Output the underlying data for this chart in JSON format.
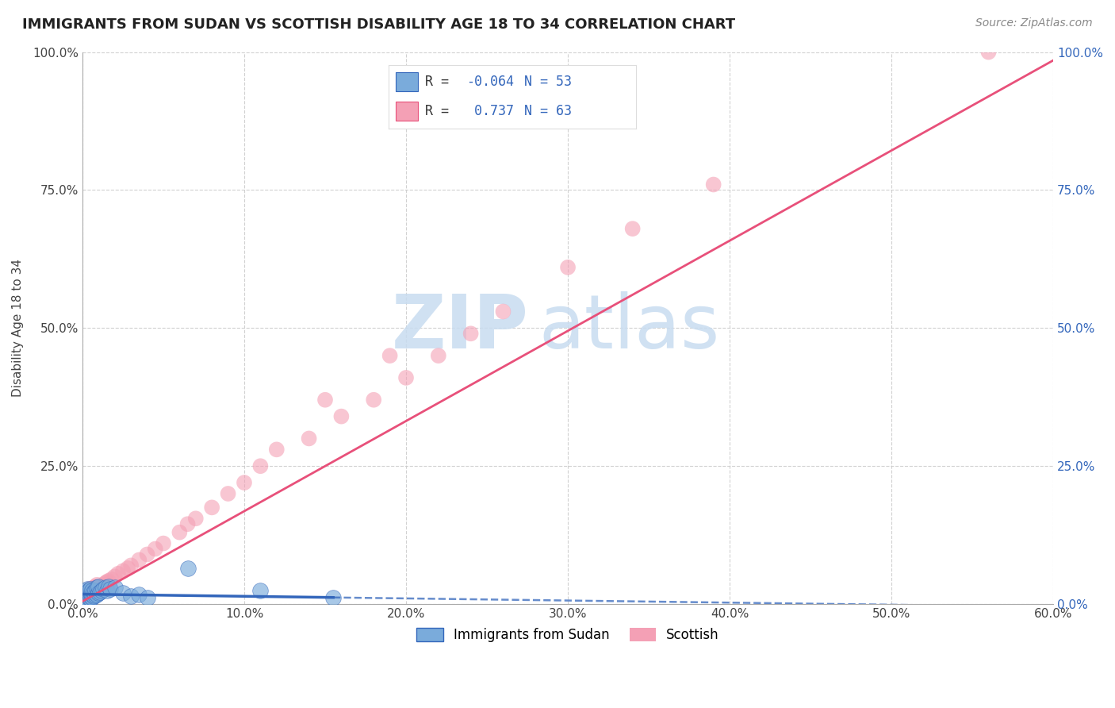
{
  "title": "IMMIGRANTS FROM SUDAN VS SCOTTISH DISABILITY AGE 18 TO 34 CORRELATION CHART",
  "source_text": "Source: ZipAtlas.com",
  "ylabel": "Disability Age 18 to 34",
  "xlim": [
    0.0,
    0.6
  ],
  "ylim": [
    0.0,
    1.0
  ],
  "xtick_labels": [
    "0.0%",
    "10.0%",
    "20.0%",
    "30.0%",
    "40.0%",
    "50.0%",
    "60.0%"
  ],
  "xtick_vals": [
    0.0,
    0.1,
    0.2,
    0.3,
    0.4,
    0.5,
    0.6
  ],
  "ytick_labels": [
    "0.0%",
    "25.0%",
    "50.0%",
    "75.0%",
    "100.0%"
  ],
  "ytick_vals": [
    0.0,
    0.25,
    0.5,
    0.75,
    1.0
  ],
  "legend1_label": "Immigrants from Sudan",
  "legend2_label": "Scottish",
  "R1": -0.064,
  "N1": 53,
  "R2": 0.737,
  "N2": 63,
  "color_blue": "#7AABDB",
  "color_pink": "#F4A0B5",
  "color_line_blue": "#3366BB",
  "color_line_pink": "#E8507A",
  "watermark_color": "#C8DCF0",
  "background_color": "#FFFFFF",
  "grid_color": "#CCCCCC",
  "blue_scatter_x": [
    0.001,
    0.001,
    0.001,
    0.001,
    0.001,
    0.002,
    0.002,
    0.002,
    0.002,
    0.002,
    0.002,
    0.002,
    0.003,
    0.003,
    0.003,
    0.003,
    0.003,
    0.003,
    0.004,
    0.004,
    0.004,
    0.004,
    0.004,
    0.005,
    0.005,
    0.005,
    0.005,
    0.006,
    0.006,
    0.006,
    0.007,
    0.007,
    0.008,
    0.008,
    0.009,
    0.009,
    0.01,
    0.01,
    0.011,
    0.012,
    0.013,
    0.014,
    0.015,
    0.016,
    0.017,
    0.02,
    0.025,
    0.03,
    0.035,
    0.04,
    0.065,
    0.11,
    0.155
  ],
  "blue_scatter_y": [
    0.005,
    0.007,
    0.01,
    0.012,
    0.015,
    0.005,
    0.008,
    0.01,
    0.013,
    0.016,
    0.02,
    0.025,
    0.006,
    0.01,
    0.015,
    0.018,
    0.022,
    0.028,
    0.008,
    0.012,
    0.016,
    0.02,
    0.025,
    0.01,
    0.015,
    0.02,
    0.028,
    0.012,
    0.018,
    0.025,
    0.015,
    0.022,
    0.016,
    0.025,
    0.018,
    0.03,
    0.02,
    0.032,
    0.022,
    0.025,
    0.028,
    0.03,
    0.025,
    0.032,
    0.028,
    0.03,
    0.02,
    0.015,
    0.018,
    0.012,
    0.065,
    0.025,
    0.012
  ],
  "pink_scatter_x": [
    0.001,
    0.001,
    0.001,
    0.002,
    0.002,
    0.002,
    0.002,
    0.003,
    0.003,
    0.003,
    0.003,
    0.004,
    0.004,
    0.004,
    0.005,
    0.005,
    0.005,
    0.006,
    0.006,
    0.007,
    0.007,
    0.008,
    0.008,
    0.009,
    0.009,
    0.01,
    0.011,
    0.012,
    0.013,
    0.014,
    0.015,
    0.016,
    0.018,
    0.02,
    0.022,
    0.025,
    0.028,
    0.03,
    0.035,
    0.04,
    0.045,
    0.05,
    0.06,
    0.065,
    0.07,
    0.08,
    0.09,
    0.1,
    0.11,
    0.12,
    0.14,
    0.16,
    0.18,
    0.2,
    0.22,
    0.24,
    0.26,
    0.3,
    0.34,
    0.39,
    0.15,
    0.19,
    0.56
  ],
  "pink_scatter_y": [
    0.01,
    0.012,
    0.015,
    0.008,
    0.012,
    0.016,
    0.02,
    0.01,
    0.015,
    0.02,
    0.025,
    0.012,
    0.018,
    0.025,
    0.015,
    0.02,
    0.028,
    0.018,
    0.025,
    0.02,
    0.03,
    0.022,
    0.032,
    0.025,
    0.035,
    0.028,
    0.03,
    0.032,
    0.035,
    0.038,
    0.04,
    0.042,
    0.045,
    0.05,
    0.055,
    0.06,
    0.065,
    0.07,
    0.08,
    0.09,
    0.1,
    0.11,
    0.13,
    0.145,
    0.155,
    0.175,
    0.2,
    0.22,
    0.25,
    0.28,
    0.3,
    0.34,
    0.37,
    0.41,
    0.45,
    0.49,
    0.53,
    0.61,
    0.68,
    0.76,
    0.37,
    0.45,
    1.0
  ],
  "pink_line_x0": 0.0,
  "pink_line_y0": 0.005,
  "pink_line_x1": 0.6,
  "pink_line_y1": 0.985,
  "blue_line_solid_x0": 0.0,
  "blue_line_solid_y0": 0.018,
  "blue_line_solid_x1": 0.155,
  "blue_line_solid_y1": 0.012,
  "blue_line_dashed_x0": 0.155,
  "blue_line_dashed_y0": 0.012,
  "blue_line_dashed_x1": 0.6,
  "blue_line_dashed_y1": -0.005
}
